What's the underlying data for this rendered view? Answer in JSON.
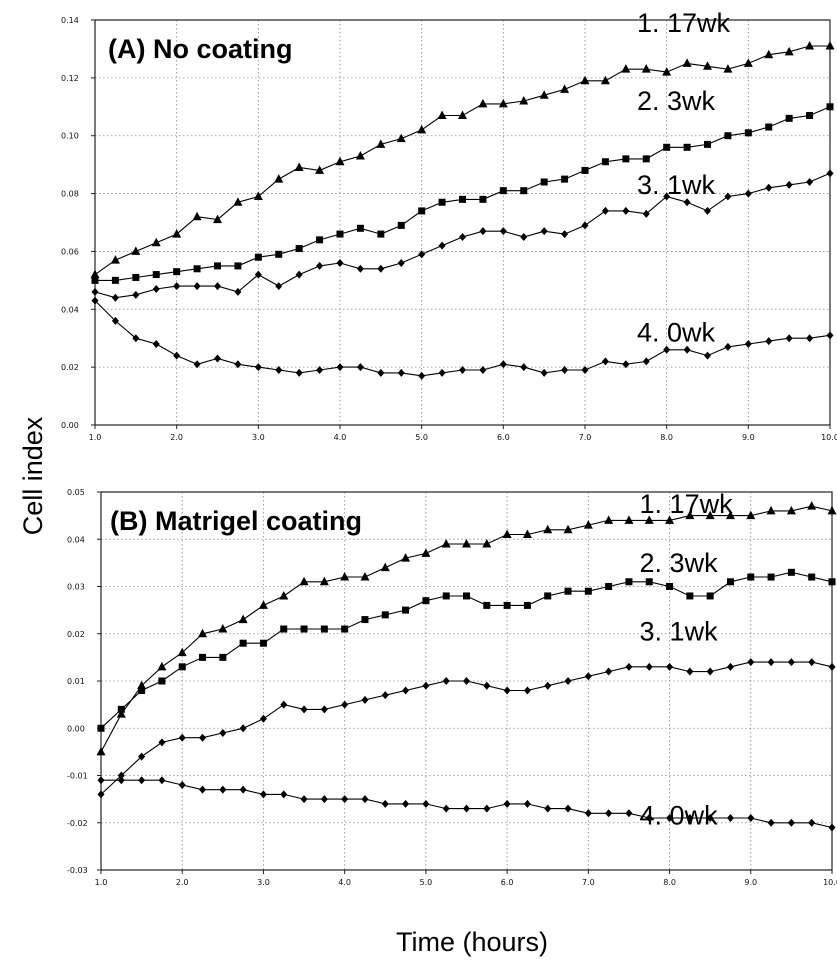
{
  "figure": {
    "ylabel": "Cell index",
    "xlabel": "Time (hours)"
  },
  "chart_data": [
    {
      "type": "line",
      "panel": "A",
      "title": "(A) No coating",
      "xlim": [
        1.0,
        10.0
      ],
      "ylim": [
        0.0,
        0.14
      ],
      "xticks": [
        "1.0",
        "2.0",
        "3.0",
        "4.0",
        "5.0",
        "6.0",
        "7.0",
        "8.0",
        "9.0",
        "10.0"
      ],
      "yticks": [
        "0.00",
        "0.02",
        "0.04",
        "0.06",
        "0.08",
        "0.10",
        "0.12",
        "0.14"
      ],
      "grid": true,
      "series": [
        {
          "name": "1. 17wk",
          "marker": "triangle",
          "label_x": 8.8,
          "label_y": 0.139,
          "x": [
            1.0,
            1.25,
            1.5,
            1.75,
            2.0,
            2.25,
            2.5,
            2.75,
            3.0,
            3.25,
            3.5,
            3.75,
            4.0,
            4.25,
            4.5,
            4.75,
            5.0,
            5.25,
            5.5,
            5.75,
            6.0,
            6.25,
            6.5,
            6.75,
            7.0,
            7.25,
            7.5,
            7.75,
            8.0,
            8.25,
            8.5,
            8.75,
            9.0,
            9.25,
            9.5,
            9.75,
            10.0
          ],
          "y": [
            0.052,
            0.057,
            0.06,
            0.063,
            0.066,
            0.072,
            0.071,
            0.077,
            0.079,
            0.085,
            0.089,
            0.088,
            0.091,
            0.093,
            0.097,
            0.099,
            0.102,
            0.107,
            0.107,
            0.111,
            0.111,
            0.112,
            0.114,
            0.116,
            0.119,
            0.119,
            0.123,
            0.123,
            0.122,
            0.125,
            0.124,
            0.123,
            0.125,
            0.128,
            0.129,
            0.131,
            0.131
          ]
        },
        {
          "name": "2. 3wk",
          "marker": "square",
          "label_x": 8.8,
          "label_y": 0.112,
          "x": [
            1.0,
            1.25,
            1.5,
            1.75,
            2.0,
            2.25,
            2.5,
            2.75,
            3.0,
            3.25,
            3.5,
            3.75,
            4.0,
            4.25,
            4.5,
            4.75,
            5.0,
            5.25,
            5.5,
            5.75,
            6.0,
            6.25,
            6.5,
            6.75,
            7.0,
            7.25,
            7.5,
            7.75,
            8.0,
            8.25,
            8.5,
            8.75,
            9.0,
            9.25,
            9.5,
            9.75,
            10.0
          ],
          "y": [
            0.05,
            0.05,
            0.051,
            0.052,
            0.053,
            0.054,
            0.055,
            0.055,
            0.058,
            0.059,
            0.061,
            0.064,
            0.066,
            0.068,
            0.066,
            0.069,
            0.074,
            0.077,
            0.078,
            0.078,
            0.081,
            0.081,
            0.084,
            0.085,
            0.088,
            0.091,
            0.092,
            0.092,
            0.096,
            0.096,
            0.097,
            0.1,
            0.101,
            0.103,
            0.106,
            0.107,
            0.11
          ]
        },
        {
          "name": "3. 1wk",
          "marker": "diamond",
          "label_x": 8.8,
          "label_y": 0.083,
          "x": [
            1.0,
            1.25,
            1.5,
            1.75,
            2.0,
            2.25,
            2.5,
            2.75,
            3.0,
            3.25,
            3.5,
            3.75,
            4.0,
            4.25,
            4.5,
            4.75,
            5.0,
            5.25,
            5.5,
            5.75,
            6.0,
            6.25,
            6.5,
            6.75,
            7.0,
            7.25,
            7.5,
            7.75,
            8.0,
            8.25,
            8.5,
            8.75,
            9.0,
            9.25,
            9.5,
            9.75,
            10.0
          ],
          "y": [
            0.046,
            0.044,
            0.045,
            0.047,
            0.048,
            0.048,
            0.048,
            0.046,
            0.052,
            0.048,
            0.052,
            0.055,
            0.056,
            0.054,
            0.054,
            0.056,
            0.059,
            0.062,
            0.065,
            0.067,
            0.067,
            0.065,
            0.067,
            0.066,
            0.069,
            0.074,
            0.074,
            0.073,
            0.079,
            0.077,
            0.074,
            0.079,
            0.08,
            0.082,
            0.083,
            0.084,
            0.087
          ]
        },
        {
          "name": "4. 0wk",
          "marker": "diamond",
          "label_x": 8.8,
          "label_y": 0.032,
          "x": [
            1.0,
            1.25,
            1.5,
            1.75,
            2.0,
            2.25,
            2.5,
            2.75,
            3.0,
            3.25,
            3.5,
            3.75,
            4.0,
            4.25,
            4.5,
            4.75,
            5.0,
            5.25,
            5.5,
            5.75,
            6.0,
            6.25,
            6.5,
            6.75,
            7.0,
            7.25,
            7.5,
            7.75,
            8.0,
            8.25,
            8.5,
            8.75,
            9.0,
            9.25,
            9.5,
            9.75,
            10.0
          ],
          "y": [
            0.043,
            0.036,
            0.03,
            0.028,
            0.024,
            0.021,
            0.023,
            0.021,
            0.02,
            0.019,
            0.018,
            0.019,
            0.02,
            0.02,
            0.018,
            0.018,
            0.017,
            0.018,
            0.019,
            0.019,
            0.021,
            0.02,
            0.018,
            0.019,
            0.019,
            0.022,
            0.021,
            0.022,
            0.026,
            0.026,
            0.024,
            0.027,
            0.028,
            0.029,
            0.03,
            0.03,
            0.031
          ]
        }
      ]
    },
    {
      "type": "line",
      "panel": "B",
      "title": "(B) Matrigel coating",
      "xlim": [
        1.0,
        10.0
      ],
      "ylim": [
        -0.03,
        0.05
      ],
      "xticks": [
        "1.0",
        "2.0",
        "3.0",
        "4.0",
        "5.0",
        "6.0",
        "7.0",
        "8.0",
        "9.0",
        "10.0"
      ],
      "yticks": [
        "-0.03",
        "-0.02",
        "-0.01",
        "0.00",
        "0.01",
        "0.02",
        "0.03",
        "0.04",
        "0.05"
      ],
      "grid": true,
      "series": [
        {
          "name": "1. 17wk",
          "marker": "triangle",
          "label_x": 8.8,
          "label_y": 0.0475,
          "x": [
            1.0,
            1.25,
            1.5,
            1.75,
            2.0,
            2.25,
            2.5,
            2.75,
            3.0,
            3.25,
            3.5,
            3.75,
            4.0,
            4.25,
            4.5,
            4.75,
            5.0,
            5.25,
            5.5,
            5.75,
            6.0,
            6.25,
            6.5,
            6.75,
            7.0,
            7.25,
            7.5,
            7.75,
            8.0,
            8.25,
            8.5,
            8.75,
            9.0,
            9.25,
            9.5,
            9.75,
            10.0
          ],
          "y": [
            -0.005,
            0.003,
            0.009,
            0.013,
            0.016,
            0.02,
            0.021,
            0.023,
            0.026,
            0.028,
            0.031,
            0.031,
            0.032,
            0.032,
            0.034,
            0.036,
            0.037,
            0.039,
            0.039,
            0.039,
            0.041,
            0.041,
            0.042,
            0.042,
            0.043,
            0.044,
            0.044,
            0.044,
            0.044,
            0.045,
            0.045,
            0.045,
            0.045,
            0.046,
            0.046,
            0.047,
            0.046
          ]
        },
        {
          "name": "2. 3wk",
          "marker": "square",
          "label_x": 8.8,
          "label_y": 0.035,
          "x": [
            1.0,
            1.25,
            1.5,
            1.75,
            2.0,
            2.25,
            2.5,
            2.75,
            3.0,
            3.25,
            3.5,
            3.75,
            4.0,
            4.25,
            4.5,
            4.75,
            5.0,
            5.25,
            5.5,
            5.75,
            6.0,
            6.25,
            6.5,
            6.75,
            7.0,
            7.25,
            7.5,
            7.75,
            8.0,
            8.25,
            8.5,
            8.75,
            9.0,
            9.25,
            9.5,
            9.75,
            10.0
          ],
          "y": [
            0.0,
            0.004,
            0.008,
            0.01,
            0.013,
            0.015,
            0.015,
            0.018,
            0.018,
            0.021,
            0.021,
            0.021,
            0.021,
            0.023,
            0.024,
            0.025,
            0.027,
            0.028,
            0.028,
            0.026,
            0.026,
            0.026,
            0.028,
            0.029,
            0.029,
            0.03,
            0.031,
            0.031,
            0.03,
            0.028,
            0.028,
            0.031,
            0.032,
            0.032,
            0.033,
            0.032,
            0.031
          ]
        },
        {
          "name": "3. 1wk",
          "marker": "diamond",
          "label_x": 8.8,
          "label_y": 0.0205,
          "x": [
            1.0,
            1.25,
            1.5,
            1.75,
            2.0,
            2.25,
            2.5,
            2.75,
            3.0,
            3.25,
            3.5,
            3.75,
            4.0,
            4.25,
            4.5,
            4.75,
            5.0,
            5.25,
            5.5,
            5.75,
            6.0,
            6.25,
            6.5,
            6.75,
            7.0,
            7.25,
            7.5,
            7.75,
            8.0,
            8.25,
            8.5,
            8.75,
            9.0,
            9.25,
            9.5,
            9.75,
            10.0
          ],
          "y": [
            -0.014,
            -0.01,
            -0.006,
            -0.003,
            -0.002,
            -0.002,
            -0.001,
            0.0,
            0.002,
            0.005,
            0.004,
            0.004,
            0.005,
            0.006,
            0.007,
            0.008,
            0.009,
            0.01,
            0.01,
            0.009,
            0.008,
            0.008,
            0.009,
            0.01,
            0.011,
            0.012,
            0.013,
            0.013,
            0.013,
            0.012,
            0.012,
            0.013,
            0.014,
            0.014,
            0.014,
            0.014,
            0.013
          ]
        },
        {
          "name": "4. 0wk",
          "marker": "diamond",
          "label_x": 8.8,
          "label_y": -0.0185,
          "x": [
            1.0,
            1.25,
            1.5,
            1.75,
            2.0,
            2.25,
            2.5,
            2.75,
            3.0,
            3.25,
            3.5,
            3.75,
            4.0,
            4.25,
            4.5,
            4.75,
            5.0,
            5.25,
            5.5,
            5.75,
            6.0,
            6.25,
            6.5,
            6.75,
            7.0,
            7.25,
            7.5,
            7.75,
            8.0,
            8.25,
            8.5,
            8.75,
            9.0,
            9.25,
            9.5,
            9.75,
            10.0
          ],
          "y": [
            -0.011,
            -0.011,
            -0.011,
            -0.011,
            -0.012,
            -0.013,
            -0.013,
            -0.013,
            -0.014,
            -0.014,
            -0.015,
            -0.015,
            -0.015,
            -0.015,
            -0.016,
            -0.016,
            -0.016,
            -0.017,
            -0.017,
            -0.017,
            -0.016,
            -0.016,
            -0.017,
            -0.017,
            -0.018,
            -0.018,
            -0.018,
            -0.019,
            -0.019,
            -0.019,
            -0.019,
            -0.019,
            -0.019,
            -0.02,
            -0.02,
            -0.02,
            -0.021
          ]
        }
      ]
    }
  ]
}
